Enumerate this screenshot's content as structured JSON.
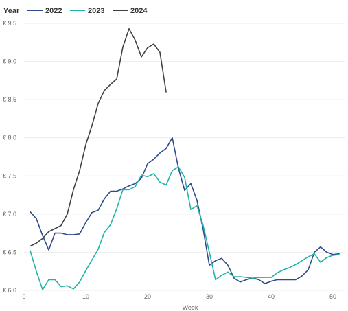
{
  "chart_data": {
    "type": "line",
    "legend_title": "Year",
    "legend_placement": "top-left",
    "xlabel": "Week",
    "ylabel": "",
    "xlim": [
      0,
      52
    ],
    "ylim": [
      6.0,
      9.5
    ],
    "x_ticks": [
      0,
      10,
      20,
      30,
      40,
      50
    ],
    "x_tick_labels": [
      "0",
      "10",
      "20",
      "30",
      "40",
      "50"
    ],
    "y_ticks": [
      6.0,
      6.5,
      7.0,
      7.5,
      8.0,
      8.5,
      9.0,
      9.5
    ],
    "y_tick_labels": [
      "€ 6.0",
      "€ 6.5",
      "€ 7.0",
      "€ 7.5",
      "€ 8.0",
      "€ 8.5",
      "€ 9.0",
      "€ 9.5"
    ],
    "grid": true,
    "colors": {
      "2022": "#2f4b8a",
      "2023": "#1fb3a8",
      "2024": "#3a4147"
    },
    "series": [
      {
        "name": "2022",
        "color": "#2f4b8a",
        "x": [
          1,
          2,
          3,
          4,
          5,
          6,
          7,
          8,
          9,
          10,
          11,
          12,
          13,
          14,
          15,
          16,
          17,
          18,
          19,
          20,
          21,
          22,
          23,
          24,
          25,
          26,
          27,
          28,
          29,
          30,
          31,
          32,
          33,
          34,
          35,
          36,
          37,
          38,
          39,
          40,
          41,
          42,
          43,
          44,
          45,
          46,
          47,
          48,
          49,
          50,
          51
        ],
        "y": [
          7.03,
          6.94,
          6.72,
          6.53,
          6.75,
          6.75,
          6.73,
          6.73,
          6.74,
          6.89,
          7.02,
          7.05,
          7.2,
          7.3,
          7.3,
          7.33,
          7.37,
          7.4,
          7.47,
          7.66,
          7.72,
          7.8,
          7.86,
          8.0,
          7.6,
          7.31,
          7.4,
          7.18,
          6.8,
          6.33,
          6.39,
          6.42,
          6.33,
          6.16,
          6.11,
          6.14,
          6.16,
          6.14,
          6.09,
          6.12,
          6.14,
          6.14,
          6.14,
          6.14,
          6.19,
          6.27,
          6.5,
          6.57,
          6.5,
          6.47,
          6.48
        ]
      },
      {
        "name": "2023",
        "color": "#1fb3a8",
        "x": [
          1,
          2,
          3,
          4,
          5,
          6,
          7,
          8,
          9,
          10,
          11,
          12,
          13,
          14,
          15,
          16,
          17,
          18,
          19,
          20,
          21,
          22,
          23,
          24,
          25,
          26,
          27,
          28,
          29,
          30,
          31,
          32,
          33,
          34,
          35,
          36,
          37,
          38,
          39,
          40,
          41,
          42,
          43,
          44,
          45,
          46,
          47,
          48,
          49,
          50,
          51
        ],
        "y": [
          6.52,
          6.25,
          6.01,
          6.14,
          6.14,
          6.05,
          6.06,
          6.02,
          6.11,
          6.26,
          6.4,
          6.54,
          6.76,
          6.86,
          7.07,
          7.32,
          7.32,
          7.36,
          7.51,
          7.49,
          7.53,
          7.42,
          7.38,
          7.57,
          7.62,
          7.48,
          7.06,
          7.11,
          6.85,
          6.5,
          6.14,
          6.2,
          6.24,
          6.18,
          6.18,
          6.17,
          6.16,
          6.17,
          6.17,
          6.17,
          6.23,
          6.27,
          6.3,
          6.34,
          6.39,
          6.44,
          6.48,
          6.37,
          6.43,
          6.46,
          6.47
        ]
      },
      {
        "name": "2024",
        "color": "#3a4147",
        "x": [
          1,
          2,
          3,
          4,
          5,
          6,
          7,
          8,
          9,
          10,
          11,
          12,
          13,
          14,
          15,
          16,
          17,
          18,
          19,
          20,
          21,
          22,
          23
        ],
        "y": [
          6.58,
          6.62,
          6.68,
          6.77,
          6.81,
          6.85,
          7.0,
          7.32,
          7.57,
          7.91,
          8.16,
          8.45,
          8.62,
          8.7,
          8.77,
          9.19,
          9.43,
          9.28,
          9.06,
          9.18,
          9.23,
          9.12,
          8.6
        ]
      }
    ]
  }
}
